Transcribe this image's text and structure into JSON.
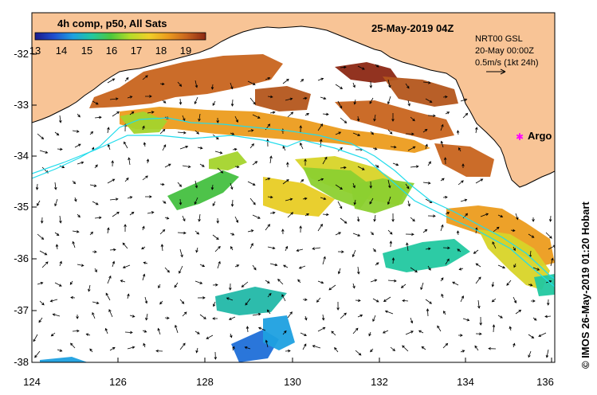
{
  "map": {
    "title": "4h comp, p50, All Sats",
    "date_label": "25-May-2019 04Z",
    "credit": "© IMOS 26-May-2019 01:20 Hobart",
    "colorbar": {
      "ticks": [
        "13",
        "14",
        "15",
        "16",
        "17",
        "18",
        "19"
      ],
      "colors": [
        "#1a1a8c",
        "#1f4fd0",
        "#1ea0e0",
        "#22c8a0",
        "#4cc83c",
        "#b4dc28",
        "#f0d028",
        "#ec9c1e",
        "#c8641e",
        "#8c2814"
      ]
    },
    "current_legend": {
      "model": "NRT00 GSL",
      "time": "20-May 00:00Z",
      "scale": "0.5m/s (1kt 24h)"
    },
    "argo_label": "Argo",
    "lat_ticks": [
      "-32",
      "-33",
      "-34",
      "-35",
      "-36",
      "-37",
      "-38"
    ],
    "lon_ticks": [
      "124",
      "126",
      "128",
      "130",
      "132",
      "134",
      "136"
    ],
    "colors": {
      "land": "#f8c496",
      "coast": "#000000",
      "contour": "#22dcec",
      "argo": "#ff00ff"
    }
  }
}
